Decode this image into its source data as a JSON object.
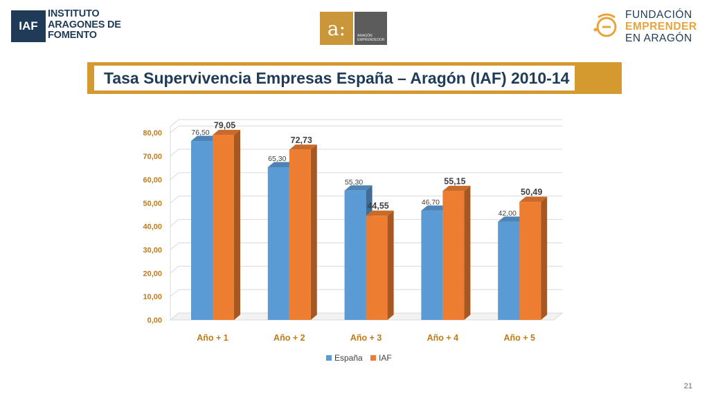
{
  "logos": {
    "iaf": {
      "mark": "IAF",
      "lines": [
        "INSTITUTO",
        "ARAGONES DE",
        "FOMENTO"
      ]
    },
    "aragon_emprendedor": {
      "mark": "a:",
      "lines": [
        "ARAGÓN",
        "EMPRENDEDOR"
      ]
    },
    "fundacion": {
      "lines": [
        "FUNDACIÓN",
        "EMPRENDER",
        "EN ARAGÓN"
      ]
    }
  },
  "title": "Tasa Supervivencia Empresas España – Aragón (IAF) 2010-14",
  "page_number": "21",
  "colors": {
    "espana": "#5b9bd5",
    "iaf": "#ed7d31",
    "axis_text": "#c07a17",
    "title_bar": "#d49a30",
    "title_text": "#1f3b57"
  },
  "chart_data": {
    "type": "bar",
    "categories": [
      "Año + 1",
      "Año + 2",
      "Año + 3",
      "Año + 4",
      "Año + 5"
    ],
    "series": [
      {
        "name": "España",
        "values": [
          76.5,
          65.3,
          55.3,
          46.7,
          42.0
        ],
        "labels": [
          "76,50",
          "65,30",
          "55,30",
          "46,70",
          "42,00"
        ]
      },
      {
        "name": "IAF",
        "values": [
          79.05,
          72.73,
          44.55,
          55.15,
          50.49
        ],
        "labels": [
          "79,05",
          "72,73",
          "44,55",
          "55,15",
          "50,49"
        ]
      }
    ],
    "yticks": [
      "0,00",
      "10,00",
      "20,00",
      "30,00",
      "40,00",
      "50,00",
      "60,00",
      "70,00",
      "80,00"
    ],
    "ylim": [
      0,
      80
    ],
    "grid": true,
    "legend": "bottom"
  }
}
